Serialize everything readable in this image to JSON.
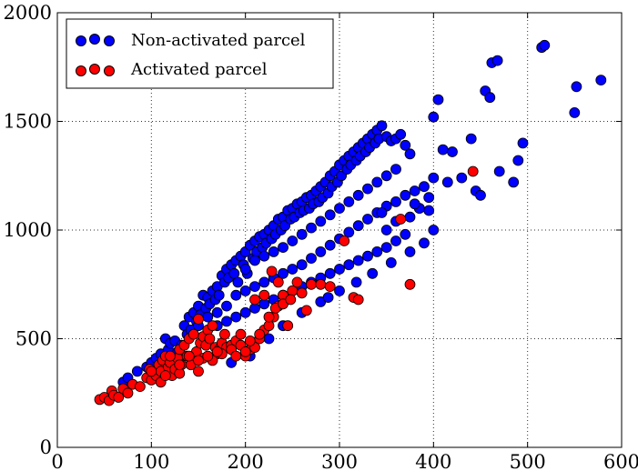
{
  "chart_data": {
    "type": "scatter",
    "title": "",
    "xlabel": "",
    "ylabel": "",
    "xlim": [
      0,
      600
    ],
    "ylim": [
      0,
      2000
    ],
    "xticks": [
      0,
      100,
      200,
      300,
      400,
      500,
      600
    ],
    "yticks": [
      0,
      500,
      1000,
      1500,
      2000
    ],
    "xtick_labels": [
      "0",
      "100",
      "200",
      "300",
      "400",
      "500",
      "600"
    ],
    "ytick_labels": [
      "0",
      "500",
      "1000",
      "1500",
      "2000"
    ],
    "grid": true,
    "legend_position": "top-left",
    "series": [
      {
        "name": "Non-activated parcel",
        "color": "#0000ff",
        "points": [
          [
            70,
            300
          ],
          [
            75,
            320
          ],
          [
            85,
            350
          ],
          [
            95,
            370
          ],
          [
            100,
            390
          ],
          [
            105,
            410
          ],
          [
            110,
            430
          ],
          [
            112,
            360
          ],
          [
            115,
            500
          ],
          [
            118,
            450
          ],
          [
            120,
            480
          ],
          [
            122,
            400
          ],
          [
            125,
            490
          ],
          [
            128,
            440
          ],
          [
            130,
            420
          ],
          [
            132,
            470
          ],
          [
            135,
            560
          ],
          [
            138,
            520
          ],
          [
            140,
            600
          ],
          [
            142,
            540
          ],
          [
            145,
            620
          ],
          [
            148,
            580
          ],
          [
            150,
            650
          ],
          [
            152,
            610
          ],
          [
            155,
            700
          ],
          [
            158,
            640
          ],
          [
            160,
            690
          ],
          [
            162,
            660
          ],
          [
            165,
            720
          ],
          [
            168,
            680
          ],
          [
            170,
            740
          ],
          [
            172,
            700
          ],
          [
            175,
            790
          ],
          [
            178,
            760
          ],
          [
            180,
            820
          ],
          [
            182,
            780
          ],
          [
            185,
            840
          ],
          [
            188,
            800
          ],
          [
            190,
            860
          ],
          [
            192,
            760
          ],
          [
            195,
            880
          ],
          [
            198,
            840
          ],
          [
            200,
            900
          ],
          [
            202,
            800
          ],
          [
            205,
            930
          ],
          [
            208,
            870
          ],
          [
            210,
            950
          ],
          [
            212,
            900
          ],
          [
            215,
            970
          ],
          [
            218,
            920
          ],
          [
            220,
            980
          ],
          [
            222,
            940
          ],
          [
            225,
            1000
          ],
          [
            228,
            960
          ],
          [
            230,
            1020
          ],
          [
            232,
            980
          ],
          [
            235,
            1050
          ],
          [
            238,
            1000
          ],
          [
            240,
            1060
          ],
          [
            242,
            1020
          ],
          [
            245,
            1090
          ],
          [
            248,
            1050
          ],
          [
            250,
            1100
          ],
          [
            252,
            1060
          ],
          [
            255,
            1120
          ],
          [
            258,
            1080
          ],
          [
            260,
            1130
          ],
          [
            262,
            1090
          ],
          [
            265,
            1150
          ],
          [
            268,
            1100
          ],
          [
            270,
            1160
          ],
          [
            272,
            1120
          ],
          [
            275,
            1180
          ],
          [
            278,
            1130
          ],
          [
            280,
            1200
          ],
          [
            282,
            1150
          ],
          [
            285,
            1220
          ],
          [
            288,
            1170
          ],
          [
            290,
            1250
          ],
          [
            292,
            1200
          ],
          [
            295,
            1270
          ],
          [
            298,
            1220
          ],
          [
            300,
            1300
          ],
          [
            302,
            1250
          ],
          [
            305,
            1320
          ],
          [
            308,
            1280
          ],
          [
            310,
            1340
          ],
          [
            312,
            1300
          ],
          [
            315,
            1360
          ],
          [
            318,
            1320
          ],
          [
            320,
            1380
          ],
          [
            322,
            1340
          ],
          [
            325,
            1400
          ],
          [
            328,
            1360
          ],
          [
            330,
            1420
          ],
          [
            332,
            1380
          ],
          [
            335,
            1440
          ],
          [
            338,
            1400
          ],
          [
            340,
            1460
          ],
          [
            342,
            1420
          ],
          [
            345,
            1480
          ],
          [
            350,
            1430
          ],
          [
            355,
            1410
          ],
          [
            360,
            1420
          ],
          [
            365,
            1440
          ],
          [
            370,
            1390
          ],
          [
            375,
            1350
          ],
          [
            385,
            1100
          ],
          [
            395,
            1150
          ],
          [
            400,
            1520
          ],
          [
            405,
            1600
          ],
          [
            410,
            1370
          ],
          [
            415,
            1220
          ],
          [
            420,
            1360
          ],
          [
            430,
            1240
          ],
          [
            440,
            1420
          ],
          [
            445,
            1180
          ],
          [
            450,
            1160
          ],
          [
            455,
            1640
          ],
          [
            460,
            1610
          ],
          [
            462,
            1770
          ],
          [
            468,
            1780
          ],
          [
            470,
            1270
          ],
          [
            485,
            1220
          ],
          [
            490,
            1320
          ],
          [
            495,
            1400
          ],
          [
            515,
            1840
          ],
          [
            518,
            1850
          ],
          [
            550,
            1540
          ],
          [
            552,
            1660
          ],
          [
            578,
            1690
          ],
          [
            150,
            560
          ],
          [
            160,
            600
          ],
          [
            170,
            620
          ],
          [
            180,
            650
          ],
          [
            190,
            700
          ],
          [
            200,
            720
          ],
          [
            210,
            740
          ],
          [
            220,
            760
          ],
          [
            230,
            780
          ],
          [
            240,
            800
          ],
          [
            250,
            820
          ],
          [
            260,
            840
          ],
          [
            270,
            870
          ],
          [
            280,
            900
          ],
          [
            290,
            930
          ],
          [
            300,
            960
          ],
          [
            310,
            990
          ],
          [
            320,
            1020
          ],
          [
            330,
            1050
          ],
          [
            340,
            1080
          ],
          [
            350,
            1110
          ],
          [
            360,
            1130
          ],
          [
            370,
            1160
          ],
          [
            380,
            1180
          ],
          [
            200,
            820
          ],
          [
            210,
            860
          ],
          [
            220,
            880
          ],
          [
            230,
            900
          ],
          [
            240,
            920
          ],
          [
            250,
            950
          ],
          [
            260,
            980
          ],
          [
            270,
            1010
          ],
          [
            280,
            1040
          ],
          [
            290,
            1070
          ],
          [
            300,
            1100
          ],
          [
            310,
            1130
          ],
          [
            320,
            1160
          ],
          [
            330,
            1190
          ],
          [
            340,
            1220
          ],
          [
            350,
            1250
          ],
          [
            360,
            1280
          ],
          [
            170,
            560
          ],
          [
            180,
            580
          ],
          [
            190,
            600
          ],
          [
            200,
            620
          ],
          [
            210,
            640
          ],
          [
            220,
            660
          ],
          [
            230,
            680
          ],
          [
            240,
            700
          ],
          [
            250,
            720
          ],
          [
            260,
            740
          ],
          [
            270,
            760
          ],
          [
            280,
            780
          ],
          [
            290,
            800
          ],
          [
            300,
            820
          ],
          [
            310,
            840
          ],
          [
            320,
            860
          ],
          [
            330,
            880
          ],
          [
            340,
            900
          ],
          [
            350,
            920
          ],
          [
            360,
            950
          ],
          [
            370,
            980
          ],
          [
            185,
            390
          ],
          [
            205,
            420
          ],
          [
            225,
            500
          ],
          [
            240,
            560
          ],
          [
            260,
            620
          ],
          [
            280,
            670
          ],
          [
            288,
            690
          ],
          [
            300,
            720
          ],
          [
            318,
            760
          ],
          [
            335,
            800
          ],
          [
            355,
            850
          ],
          [
            375,
            900
          ],
          [
            390,
            940
          ],
          [
            385,
            1100
          ],
          [
            395,
            1090
          ],
          [
            400,
            1000
          ],
          [
            350,
            1000
          ],
          [
            345,
            1080
          ],
          [
            360,
            1040
          ],
          [
            375,
            1060
          ],
          [
            380,
            1120
          ],
          [
            390,
            1200
          ],
          [
            400,
            1240
          ]
        ]
      },
      {
        "name": "Activated parcel",
        "color": "#ff0000",
        "points": [
          [
            45,
            220
          ],
          [
            50,
            230
          ],
          [
            55,
            215
          ],
          [
            58,
            260
          ],
          [
            60,
            240
          ],
          [
            65,
            230
          ],
          [
            70,
            270
          ],
          [
            75,
            250
          ],
          [
            80,
            290
          ],
          [
            88,
            280
          ],
          [
            95,
            320
          ],
          [
            98,
            360
          ],
          [
            100,
            310
          ],
          [
            105,
            330
          ],
          [
            108,
            380
          ],
          [
            110,
            350
          ],
          [
            112,
            400
          ],
          [
            115,
            420
          ],
          [
            118,
            370
          ],
          [
            120,
            390
          ],
          [
            122,
            330
          ],
          [
            125,
            360
          ],
          [
            128,
            410
          ],
          [
            130,
            450
          ],
          [
            132,
            380
          ],
          [
            135,
            470
          ],
          [
            138,
            420
          ],
          [
            140,
            500
          ],
          [
            142,
            380
          ],
          [
            145,
            520
          ],
          [
            148,
            440
          ],
          [
            150,
            590
          ],
          [
            152,
            480
          ],
          [
            155,
            510
          ],
          [
            158,
            470
          ],
          [
            160,
            540
          ],
          [
            162,
            500
          ],
          [
            165,
            560
          ],
          [
            168,
            460
          ],
          [
            170,
            430
          ],
          [
            172,
            450
          ],
          [
            175,
            480
          ],
          [
            178,
            520
          ],
          [
            180,
            460
          ],
          [
            185,
            470
          ],
          [
            190,
            490
          ],
          [
            195,
            520
          ],
          [
            200,
            420
          ],
          [
            205,
            450
          ],
          [
            210,
            460
          ],
          [
            215,
            500
          ],
          [
            220,
            540
          ],
          [
            225,
            560
          ],
          [
            230,
            600
          ],
          [
            235,
            650
          ],
          [
            240,
            700
          ],
          [
            245,
            560
          ],
          [
            250,
            720
          ],
          [
            260,
            710
          ],
          [
            270,
            750
          ],
          [
            280,
            750
          ],
          [
            290,
            740
          ],
          [
            305,
            950
          ],
          [
            315,
            690
          ],
          [
            320,
            680
          ],
          [
            365,
            1050
          ],
          [
            375,
            750
          ],
          [
            442,
            1270
          ],
          [
            130,
            340
          ],
          [
            150,
            350
          ],
          [
            155,
            410
          ],
          [
            165,
            400
          ],
          [
            175,
            430
          ],
          [
            185,
            450
          ],
          [
            195,
            470
          ],
          [
            205,
            490
          ],
          [
            215,
            520
          ],
          [
            225,
            600
          ],
          [
            232,
            640
          ],
          [
            240,
            660
          ],
          [
            248,
            680
          ],
          [
            210,
            680
          ],
          [
            220,
            700
          ],
          [
            228,
            810
          ],
          [
            235,
            760
          ],
          [
            255,
            760
          ],
          [
            265,
            630
          ],
          [
            150,
            400
          ],
          [
            160,
            420
          ],
          [
            170,
            440
          ],
          [
            140,
            420
          ],
          [
            190,
            420
          ],
          [
            200,
            440
          ],
          [
            130,
            380
          ],
          [
            120,
            420
          ],
          [
            110,
            300
          ],
          [
            115,
            330
          ],
          [
            100,
            350
          ]
        ]
      }
    ]
  },
  "legend": {
    "items": [
      {
        "label": "Non-activated parcel",
        "color": "#0000ff"
      },
      {
        "label": "Activated parcel",
        "color": "#ff0000"
      }
    ]
  }
}
